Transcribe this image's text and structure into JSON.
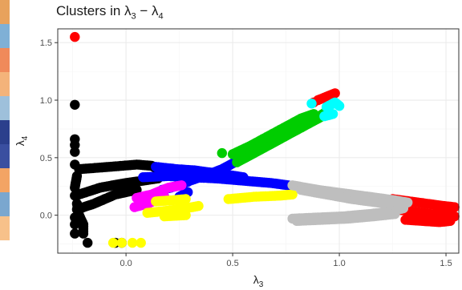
{
  "chart_data": {
    "type": "scatter",
    "title": "Clusters in λ3 − λ4",
    "title_parts": {
      "main": "Clusters in λ",
      "sub_a": "3",
      "dash": " − λ",
      "sub_b": "4"
    },
    "xlabel": {
      "symbol": "λ",
      "subscript": "3"
    },
    "ylabel": {
      "symbol": "λ",
      "subscript": "4"
    },
    "xlim": [
      -0.32,
      1.56
    ],
    "ylim": [
      -0.33,
      1.62
    ],
    "x_ticks": [
      0.0,
      0.5,
      1.0,
      1.5
    ],
    "x_tick_labels": [
      "0.0",
      "0.5",
      "1.0",
      "1.5"
    ],
    "y_ticks": [
      0.0,
      0.5,
      1.0,
      1.5
    ],
    "y_tick_labels": [
      "0.0",
      "0.5",
      "1.0",
      "1.5"
    ],
    "grid": true,
    "legend": "none",
    "colors": {
      "black": "#000000",
      "blue": "#0000ff",
      "green": "#00cd00",
      "red": "#ff0000",
      "cyan": "#00ffff",
      "magenta": "#ff00ff",
      "yellow": "#ffff00",
      "gray": "#bebebe",
      "panel_border": "#333333",
      "grid_major": "#ebebeb",
      "grid_minor": "#f5f5f5"
    },
    "series": [
      {
        "color": "black",
        "segments": [
          [
            [
              -0.22,
              0.4
            ],
            [
              -0.08,
              0.42
            ],
            [
              0.05,
              0.44
            ],
            [
              0.12,
              0.43
            ],
            [
              0.15,
              0.4
            ]
          ],
          [
            [
              -0.22,
              0.18
            ],
            [
              -0.12,
              0.24
            ],
            [
              0.0,
              0.28
            ],
            [
              0.08,
              0.3
            ],
            [
              0.15,
              0.32
            ]
          ],
          [
            [
              -0.23,
              0.05
            ],
            [
              -0.15,
              0.1
            ],
            [
              -0.05,
              0.18
            ],
            [
              0.05,
              0.22
            ]
          ],
          [
            [
              -0.23,
              0.1
            ],
            [
              -0.22,
              0.0
            ],
            [
              -0.2,
              -0.08
            ],
            [
              -0.2,
              -0.16
            ]
          ],
          [
            [
              -0.24,
              0.24
            ],
            [
              -0.23,
              0.34
            ]
          ]
        ],
        "points": [
          [
            -0.24,
            0.96
          ],
          [
            -0.24,
            0.66
          ],
          [
            -0.24,
            0.61
          ],
          [
            -0.24,
            0.55
          ],
          [
            -0.24,
            0.44
          ],
          [
            -0.24,
            0.17
          ],
          [
            -0.24,
            -0.02
          ],
          [
            -0.24,
            -0.08
          ],
          [
            -0.24,
            -0.16
          ],
          [
            -0.18,
            -0.24
          ],
          [
            -0.05,
            -0.24
          ],
          [
            -0.02,
            -0.24
          ]
        ]
      },
      {
        "color": "blue",
        "segments": [
          [
            [
              0.14,
              0.42
            ],
            [
              0.24,
              0.4
            ],
            [
              0.32,
              0.39
            ],
            [
              0.4,
              0.37
            ],
            [
              0.48,
              0.35
            ],
            [
              0.55,
              0.33
            ]
          ],
          [
            [
              0.08,
              0.33
            ],
            [
              0.2,
              0.34
            ],
            [
              0.3,
              0.33
            ],
            [
              0.42,
              0.32
            ],
            [
              0.55,
              0.3
            ],
            [
              0.68,
              0.28
            ],
            [
              0.76,
              0.26
            ]
          ],
          [
            [
              0.3,
              0.3
            ],
            [
              0.38,
              0.35
            ],
            [
              0.45,
              0.4
            ],
            [
              0.52,
              0.47
            ],
            [
              0.58,
              0.53
            ]
          ],
          [
            [
              0.17,
              0.22
            ],
            [
              0.23,
              0.25
            ],
            [
              0.29,
              0.29
            ]
          ],
          [
            [
              0.25,
              0.16
            ],
            [
              0.29,
              0.2
            ]
          ]
        ],
        "points": []
      },
      {
        "color": "green",
        "segments": [
          [
            [
              0.52,
              0.46
            ],
            [
              0.6,
              0.54
            ],
            [
              0.68,
              0.62
            ],
            [
              0.76,
              0.7
            ],
            [
              0.84,
              0.78
            ],
            [
              0.92,
              0.86
            ]
          ],
          [
            [
              0.56,
              0.5
            ],
            [
              0.64,
              0.58
            ],
            [
              0.72,
              0.66
            ],
            [
              0.8,
              0.75
            ],
            [
              0.88,
              0.83
            ],
            [
              0.94,
              0.9
            ]
          ],
          [
            [
              0.5,
              0.53
            ],
            [
              0.58,
              0.6
            ],
            [
              0.66,
              0.68
            ],
            [
              0.74,
              0.76
            ],
            [
              0.82,
              0.84
            ],
            [
              0.88,
              0.88
            ]
          ]
        ],
        "points": [
          [
            0.45,
            0.54
          ]
        ]
      },
      {
        "color": "red",
        "segments": [
          [
            [
              1.25,
              0.14
            ],
            [
              1.33,
              0.12
            ],
            [
              1.41,
              0.1
            ],
            [
              1.49,
              0.08
            ],
            [
              1.54,
              0.07
            ]
          ],
          [
            [
              1.27,
              0.05
            ],
            [
              1.35,
              0.03
            ],
            [
              1.43,
              0.01
            ],
            [
              1.5,
              0.0
            ],
            [
              1.54,
              -0.01
            ]
          ],
          [
            [
              1.31,
              -0.04
            ],
            [
              1.39,
              -0.05
            ],
            [
              1.47,
              -0.06
            ],
            [
              1.52,
              -0.05
            ]
          ],
          [
            [
              0.9,
              1.0
            ],
            [
              0.94,
              1.03
            ],
            [
              0.98,
              1.06
            ]
          ]
        ],
        "points": [
          [
            -0.24,
            1.55
          ],
          [
            0.88,
            0.98
          ]
        ]
      },
      {
        "color": "cyan",
        "segments": [
          [
            [
              0.94,
              0.94
            ],
            [
              0.98,
              0.98
            ],
            [
              1.0,
              0.95
            ]
          ],
          [
            [
              0.93,
              0.86
            ],
            [
              0.97,
              0.88
            ]
          ]
        ],
        "points": [
          [
            0.87,
            0.97
          ]
        ]
      },
      {
        "color": "magenta",
        "segments": [
          [
            [
              0.05,
              0.15
            ],
            [
              0.12,
              0.18
            ],
            [
              0.2,
              0.24
            ],
            [
              0.26,
              0.26
            ]
          ],
          [
            [
              0.04,
              0.07
            ],
            [
              0.1,
              0.1
            ],
            [
              0.18,
              0.16
            ]
          ]
        ],
        "points": []
      },
      {
        "color": "yellow",
        "segments": [
          [
            [
              0.1,
              0.02
            ],
            [
              0.2,
              0.04
            ],
            [
              0.28,
              0.06
            ],
            [
              0.34,
              0.08
            ]
          ],
          [
            [
              0.14,
              0.12
            ],
            [
              0.22,
              0.13
            ],
            [
              0.28,
              0.14
            ]
          ],
          [
            [
              0.48,
              0.14
            ],
            [
              0.6,
              0.16
            ],
            [
              0.72,
              0.17
            ],
            [
              0.78,
              0.18
            ]
          ],
          [
            [
              0.18,
              -0.01
            ],
            [
              0.28,
              0.0
            ]
          ]
        ],
        "points": [
          [
            -0.06,
            -0.24
          ],
          [
            -0.02,
            -0.24
          ],
          [
            0.03,
            -0.24
          ],
          [
            0.07,
            -0.24
          ]
        ]
      },
      {
        "color": "gray",
        "segments": [
          [
            [
              0.78,
              0.26
            ],
            [
              0.9,
              0.22
            ],
            [
              1.02,
              0.19
            ],
            [
              1.14,
              0.16
            ],
            [
              1.26,
              0.13
            ],
            [
              1.32,
              0.11
            ]
          ],
          [
            [
              0.82,
              0.22
            ],
            [
              0.94,
              0.18
            ],
            [
              1.06,
              0.14
            ],
            [
              1.18,
              0.11
            ],
            [
              1.28,
              0.09
            ]
          ],
          [
            [
              0.78,
              -0.03
            ],
            [
              0.9,
              -0.02
            ],
            [
              1.02,
              -0.01
            ],
            [
              1.14,
              0.01
            ],
            [
              1.24,
              0.03
            ],
            [
              1.3,
              0.06
            ]
          ],
          [
            [
              0.8,
              -0.05
            ],
            [
              0.92,
              -0.04
            ],
            [
              1.04,
              -0.03
            ],
            [
              1.16,
              -0.01
            ],
            [
              1.26,
              0.01
            ]
          ]
        ],
        "points": []
      }
    ]
  }
}
